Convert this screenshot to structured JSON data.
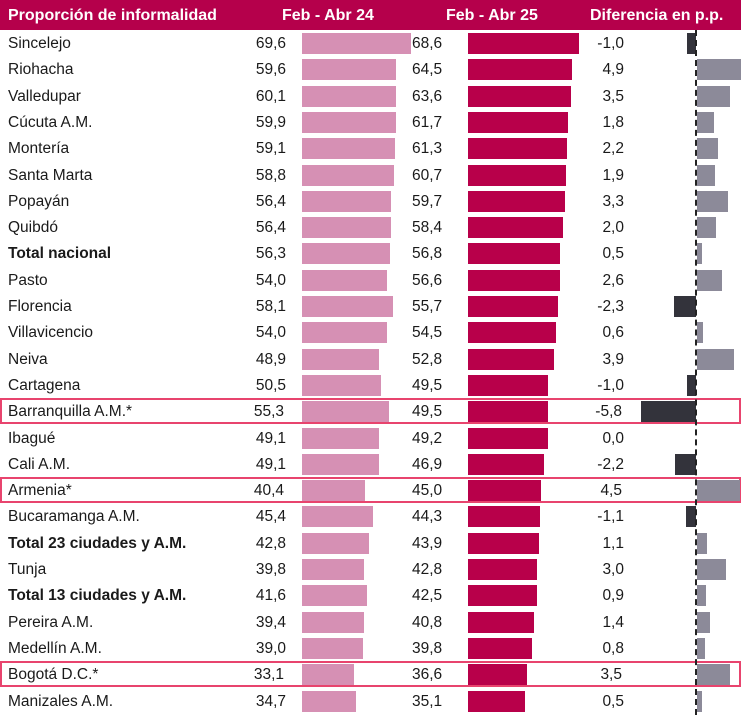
{
  "chart_data": {
    "type": "table",
    "title": "Proporción de informalidad",
    "columns": [
      "Proporción de informalidad",
      "Feb - Abr 24",
      "Feb - Abr 25",
      "Diferencia en p.p."
    ],
    "series": [
      {
        "name": "Feb - Abr 24",
        "color": "#D690B4"
      },
      {
        "name": "Feb - Abr 25",
        "color": "#B8004A"
      },
      {
        "name": "Diferencia en p.p.",
        "color_positive": "#8C8A99",
        "color_negative": "#33333B"
      }
    ],
    "rows": [
      {
        "label": "Sincelejo",
        "v24": 69.6,
        "v25": 68.6,
        "diff": -1.0,
        "t24": "69,6",
        "t25": "68,6",
        "td": "-1,0",
        "bold": false,
        "highlight": false
      },
      {
        "label": "Riohacha",
        "v24": 59.6,
        "v25": 64.5,
        "diff": 4.9,
        "t24": "59,6",
        "t25": "64,5",
        "td": "4,9",
        "bold": false,
        "highlight": false
      },
      {
        "label": "Valledupar",
        "v24": 60.1,
        "v25": 63.6,
        "diff": 3.5,
        "t24": "60,1",
        "t25": "63,6",
        "td": "3,5",
        "bold": false,
        "highlight": false
      },
      {
        "label": "Cúcuta A.M.",
        "v24": 59.9,
        "v25": 61.7,
        "diff": 1.8,
        "t24": "59,9",
        "t25": "61,7",
        "td": "1,8",
        "bold": false,
        "highlight": false
      },
      {
        "label": "Montería",
        "v24": 59.1,
        "v25": 61.3,
        "diff": 2.2,
        "t24": "59,1",
        "t25": "61,3",
        "td": "2,2",
        "bold": false,
        "highlight": false
      },
      {
        "label": "Santa Marta",
        "v24": 58.8,
        "v25": 60.7,
        "diff": 1.9,
        "t24": "58,8",
        "t25": "60,7",
        "td": "1,9",
        "bold": false,
        "highlight": false
      },
      {
        "label": "Popayán",
        "v24": 56.4,
        "v25": 59.7,
        "diff": 3.3,
        "t24": "56,4",
        "t25": "59,7",
        "td": "3,3",
        "bold": false,
        "highlight": false
      },
      {
        "label": "Quibdó",
        "v24": 56.4,
        "v25": 58.4,
        "diff": 2.0,
        "t24": "56,4",
        "t25": "58,4",
        "td": "2,0",
        "bold": false,
        "highlight": false
      },
      {
        "label": "Total nacional",
        "v24": 56.3,
        "v25": 56.8,
        "diff": 0.5,
        "t24": "56,3",
        "t25": "56,8",
        "td": "0,5",
        "bold": true,
        "highlight": false
      },
      {
        "label": "Pasto",
        "v24": 54.0,
        "v25": 56.6,
        "diff": 2.6,
        "t24": "54,0",
        "t25": "56,6",
        "td": "2,6",
        "bold": false,
        "highlight": false
      },
      {
        "label": "Florencia",
        "v24": 58.1,
        "v25": 55.7,
        "diff": -2.3,
        "t24": "58,1",
        "t25": "55,7",
        "td": "-2,3",
        "bold": false,
        "highlight": false
      },
      {
        "label": "Villavicencio",
        "v24": 54.0,
        "v25": 54.5,
        "diff": 0.6,
        "t24": "54,0",
        "t25": "54,5",
        "td": "0,6",
        "bold": false,
        "highlight": false
      },
      {
        "label": "Neiva",
        "v24": 48.9,
        "v25": 52.8,
        "diff": 3.9,
        "t24": "48,9",
        "t25": "52,8",
        "td": "3,9",
        "bold": false,
        "highlight": false
      },
      {
        "label": "Cartagena",
        "v24": 50.5,
        "v25": 49.5,
        "diff": -1.0,
        "t24": "50,5",
        "t25": "49,5",
        "td": "-1,0",
        "bold": false,
        "highlight": false
      },
      {
        "label": "Barranquilla A.M.*",
        "v24": 55.3,
        "v25": 49.5,
        "diff": -5.8,
        "t24": "55,3",
        "t25": "49,5",
        "td": "-5,8",
        "bold": false,
        "highlight": true
      },
      {
        "label": "Ibagué",
        "v24": 49.1,
        "v25": 49.2,
        "diff": 0.0,
        "t24": "49,1",
        "t25": "49,2",
        "td": "0,0",
        "bold": false,
        "highlight": false
      },
      {
        "label": "Cali A.M.",
        "v24": 49.1,
        "v25": 46.9,
        "diff": -2.2,
        "t24": "49,1",
        "t25": "46,9",
        "td": "-2,2",
        "bold": false,
        "highlight": false
      },
      {
        "label": "Armenia*",
        "v24": 40.4,
        "v25": 45.0,
        "diff": 4.5,
        "t24": "40,4",
        "t25": "45,0",
        "td": "4,5",
        "bold": false,
        "highlight": true
      },
      {
        "label": "Bucaramanga A.M.",
        "v24": 45.4,
        "v25": 44.3,
        "diff": -1.1,
        "t24": "45,4",
        "t25": "44,3",
        "td": "-1,1",
        "bold": false,
        "highlight": false
      },
      {
        "label": "Total 23 ciudades y A.M.",
        "v24": 42.8,
        "v25": 43.9,
        "diff": 1.1,
        "t24": "42,8",
        "t25": "43,9",
        "td": "1,1",
        "bold": true,
        "highlight": false
      },
      {
        "label": "Tunja",
        "v24": 39.8,
        "v25": 42.8,
        "diff": 3.0,
        "t24": "39,8",
        "t25": "42,8",
        "td": "3,0",
        "bold": false,
        "highlight": false
      },
      {
        "label": "Total 13 ciudades y A.M.",
        "v24": 41.6,
        "v25": 42.5,
        "diff": 0.9,
        "t24": "41,6",
        "t25": "42,5",
        "td": "0,9",
        "bold": true,
        "highlight": false
      },
      {
        "label": "Pereira A.M.",
        "v24": 39.4,
        "v25": 40.8,
        "diff": 1.4,
        "t24": "39,4",
        "t25": "40,8",
        "td": "1,4",
        "bold": false,
        "highlight": false
      },
      {
        "label": "Medellín A.M.",
        "v24": 39.0,
        "v25": 39.8,
        "diff": 0.8,
        "t24": "39,0",
        "t25": "39,8",
        "td": "0,8",
        "bold": false,
        "highlight": false
      },
      {
        "label": "Bogotá D.C.*",
        "v24": 33.1,
        "v25": 36.6,
        "diff": 3.5,
        "t24": "33,1",
        "t25": "36,6",
        "td": "3,5",
        "bold": false,
        "highlight": true
      },
      {
        "label": "Manizales A.M.",
        "v24": 34.7,
        "v25": 35.1,
        "diff": 0.5,
        "t24": "34,7",
        "t25": "35,1",
        "td": "0,5",
        "bold": false,
        "highlight": false
      }
    ]
  },
  "header": {
    "col_label": "Proporción de informalidad",
    "col_24": "Feb - Abr 24",
    "col_25": "Feb - Abr 25",
    "col_diff": "Diferencia en p.p."
  },
  "colors": {
    "header_bg": "#B5004B",
    "bar_24": "#D690B4",
    "bar_25": "#B8004A",
    "diff_positive": "#8C8A99",
    "diff_negative": "#33333B",
    "highlight_border": "#E8446E"
  }
}
